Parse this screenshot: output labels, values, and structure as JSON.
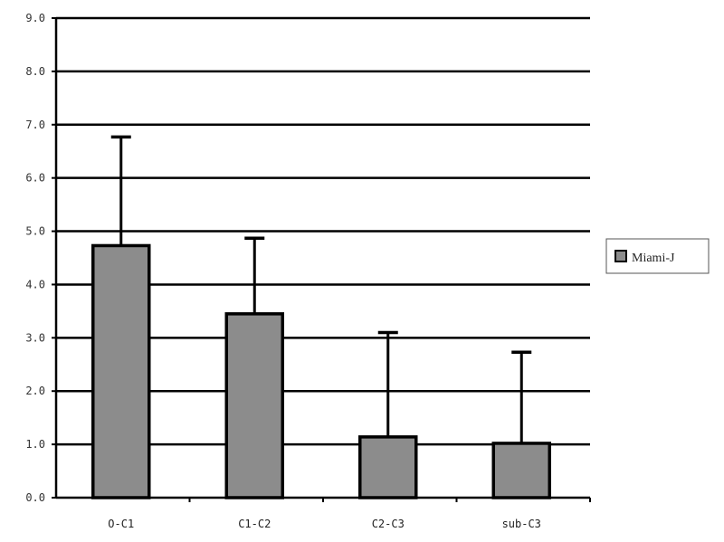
{
  "chart_data": {
    "type": "bar",
    "title": "",
    "xlabel": "",
    "ylabel": "",
    "categories": [
      "O-C1",
      "C1-C2",
      "C2-C3",
      "sub-C3"
    ],
    "series": [
      {
        "name": "Miami-J",
        "values": [
          4.73,
          3.45,
          1.14,
          1.02
        ],
        "error_upper": [
          6.77,
          4.87,
          3.1,
          2.73
        ],
        "color": "#8c8c8c"
      }
    ],
    "ylim": [
      0,
      9
    ],
    "yticks": [
      "0.0",
      "1.0",
      "2.0",
      "3.0",
      "4.0",
      "5.0",
      "6.0",
      "7.0",
      "8.0",
      "9.0"
    ],
    "grid": true,
    "legend_position": "right"
  }
}
